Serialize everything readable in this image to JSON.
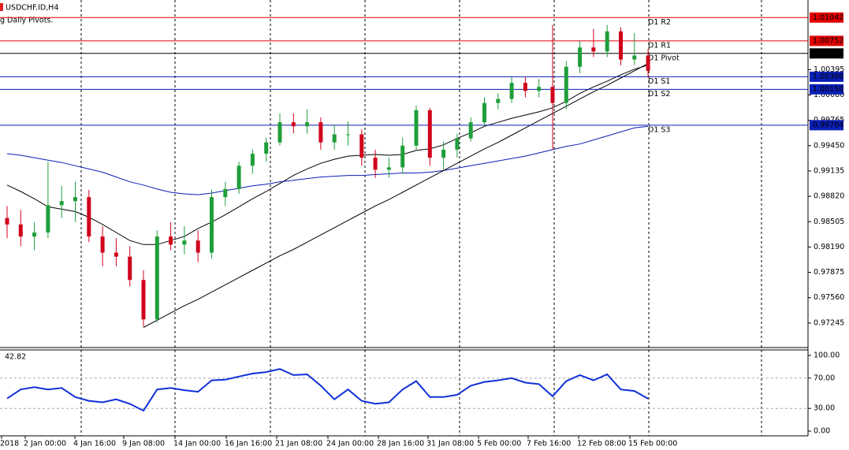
{
  "chart_data": [
    {
      "type": "candlestick",
      "title": "USDCHF.ID,H4",
      "subtitle": "g Daily Pivots.",
      "x_labels": [
        "2018",
        "2 Jan 00:00",
        "4 Jan 16:00",
        "9 Jan 08:00",
        "14 Jan 00:00",
        "16 Jan 16:00",
        "21 Jan 08:00",
        "24 Jan 00:00",
        "28 Jan 16:00",
        "31 Jan 08:00",
        "5 Feb 00:00",
        "7 Feb 16:00",
        "12 Feb 08:00",
        "15 Feb 00:00"
      ],
      "ylim": [
        0.9695,
        1.0126
      ],
      "yticks": [
        {
          "value": 1.00395,
          "label": "1.00395"
        },
        {
          "value": 1.0008,
          "label": "1.00080"
        },
        {
          "value": 0.99765,
          "label": "0.99765"
        },
        {
          "value": 0.9945,
          "label": "0.99450"
        },
        {
          "value": 0.99135,
          "label": "0.99135"
        },
        {
          "value": 0.9882,
          "label": "0.98820"
        },
        {
          "value": 0.98505,
          "label": "0.98505"
        },
        {
          "value": 0.9819,
          "label": "0.98190"
        },
        {
          "value": 0.97875,
          "label": "0.97875"
        },
        {
          "value": 0.9756,
          "label": "0.97560"
        },
        {
          "value": 0.97245,
          "label": "0.97245"
        }
      ],
      "up_color": "#1f9e3a",
      "down_color": "#d0021b",
      "candles": [
        [
          0.9855,
          0.987,
          0.983,
          0.9847
        ],
        [
          0.9847,
          0.9865,
          0.982,
          0.9832
        ],
        [
          0.9832,
          0.985,
          0.9815,
          0.9837
        ],
        [
          0.9837,
          0.9925,
          0.983,
          0.9871
        ],
        [
          0.9871,
          0.9895,
          0.9855,
          0.9876
        ],
        [
          0.9876,
          0.99,
          0.985,
          0.9881
        ],
        [
          0.9881,
          0.989,
          0.9825,
          0.9832
        ],
        [
          0.9832,
          0.9845,
          0.9795,
          0.9812
        ],
        [
          0.9812,
          0.983,
          0.9795,
          0.9807
        ],
        [
          0.9807,
          0.982,
          0.977,
          0.9778
        ],
        [
          0.9778,
          0.979,
          0.972,
          0.9729
        ],
        [
          0.9729,
          0.984,
          0.9725,
          0.9832
        ],
        [
          0.9832,
          0.985,
          0.9815,
          0.9822
        ],
        [
          0.9822,
          0.9845,
          0.981,
          0.9827
        ],
        [
          0.9827,
          0.984,
          0.98,
          0.9812
        ],
        [
          0.9812,
          0.989,
          0.9805,
          0.9881
        ],
        [
          0.9881,
          0.99,
          0.987,
          0.9891
        ],
        [
          0.9891,
          0.9925,
          0.9885,
          0.992
        ],
        [
          0.992,
          0.994,
          0.991,
          0.9935
        ],
        [
          0.9935,
          0.9955,
          0.9925,
          0.9949
        ],
        [
          0.9949,
          0.9985,
          0.9945,
          0.9974
        ],
        [
          0.9974,
          0.9985,
          0.996,
          0.9969
        ],
        [
          0.9969,
          0.999,
          0.996,
          0.9974
        ],
        [
          0.9974,
          0.998,
          0.994,
          0.9949
        ],
        [
          0.9949,
          0.997,
          0.994,
          0.9959
        ],
        [
          0.9959,
          0.9975,
          0.9945,
          0.9959
        ],
        [
          0.9959,
          0.9965,
          0.992,
          0.993
        ],
        [
          0.993,
          0.994,
          0.9905,
          0.9915
        ],
        [
          0.9915,
          0.993,
          0.9905,
          0.9918
        ],
        [
          0.9918,
          0.9955,
          0.991,
          0.9945
        ],
        [
          0.9945,
          0.9995,
          0.994,
          0.9989
        ],
        [
          0.9989,
          0.9992,
          0.992,
          0.993
        ],
        [
          0.993,
          0.995,
          0.9915,
          0.994
        ],
        [
          0.994,
          0.996,
          0.993,
          0.9954
        ],
        [
          0.9954,
          0.998,
          0.995,
          0.9974
        ],
        [
          0.9974,
          1.0005,
          0.997,
          0.9998
        ],
        [
          0.9998,
          1.001,
          0.999,
          1.0003
        ],
        [
          1.0003,
          1.003,
          0.9998,
          1.0023
        ],
        [
          1.0023,
          1.003,
          1.0005,
          1.0013
        ],
        [
          1.0013,
          1.0028,
          1.0005,
          1.0018
        ],
        [
          1.0018,
          1.0095,
          0.994,
          0.9998
        ],
        [
          0.9998,
          1.005,
          0.999,
          1.0043
        ],
        [
          1.0043,
          1.0075,
          1.0035,
          1.0067
        ],
        [
          1.0067,
          1.009,
          1.0055,
          1.0062
        ],
        [
          1.0062,
          1.0095,
          1.0055,
          1.0087
        ],
        [
          1.0087,
          1.0092,
          1.0045,
          1.0052
        ],
        [
          1.0052,
          1.0085,
          1.0045,
          1.0057
        ],
        [
          1.0057,
          1.0065,
          1.003,
          1.0038
        ]
      ],
      "series": [
        {
          "color": "#000000",
          "values": [
            0.9896,
            0.9888,
            0.9879,
            0.9869,
            0.9866,
            0.9863,
            0.9856,
            0.9847,
            0.9837,
            0.9827,
            0.9822,
            0.9822,
            0.9827,
            0.9832,
            0.9842,
            0.985,
            0.9859,
            0.9869,
            0.9879,
            0.9888,
            0.9898,
            0.9908,
            0.9916,
            0.9923,
            0.9928,
            0.9932,
            0.9933,
            0.9934,
            0.9933,
            0.9934,
            0.9939,
            0.9941,
            0.9946,
            0.9954,
            0.9961,
            0.9969,
            0.9974,
            0.9979,
            0.9983,
            0.9987,
            0.9992,
            1.0,
            1.001,
            1.0018,
            1.0025,
            1.0033,
            1.004,
            1.0045
          ]
        },
        {
          "color": "#0a1fb5",
          "values": [
            0.9935,
            0.9933,
            0.993,
            0.9927,
            0.9924,
            0.992,
            0.9916,
            0.9912,
            0.9906,
            0.99,
            0.9896,
            0.9891,
            0.9887,
            0.9885,
            0.9884,
            0.9886,
            0.9889,
            0.9892,
            0.9895,
            0.9897,
            0.99,
            0.9902,
            0.9904,
            0.9906,
            0.9907,
            0.9908,
            0.9908,
            0.9909,
            0.991,
            0.9911,
            0.9911,
            0.9912,
            0.9914,
            0.9917,
            0.992,
            0.9923,
            0.9926,
            0.9929,
            0.9932,
            0.9936,
            0.994,
            0.9944,
            0.9947,
            0.9952,
            0.9957,
            0.9962,
            0.9967,
            0.9969
          ]
        },
        {
          "color": "#000000",
          "values": [
            null,
            null,
            null,
            null,
            null,
            null,
            null,
            null,
            null,
            null,
            0.9719,
            0.9728,
            0.9737,
            0.9746,
            0.9754,
            0.9763,
            0.9772,
            0.9781,
            0.979,
            0.9799,
            0.9808,
            0.9816,
            0.9825,
            0.9834,
            0.9843,
            0.9852,
            0.9861,
            0.987,
            0.9878,
            0.9887,
            0.9896,
            0.9905,
            0.9914,
            0.9923,
            0.9932,
            0.9941,
            0.9949,
            0.9958,
            0.9967,
            0.9976,
            0.9985,
            0.9994,
            1.0003,
            1.0012,
            1.002,
            1.0029,
            1.0038,
            1.0047
          ]
        }
      ],
      "levels": [
        {
          "label": "D1 R2",
          "value": 1.01042,
          "value_label": "1.01042",
          "color": "#e00000"
        },
        {
          "label": "D1 R1",
          "value": 1.00752,
          "value_label": "1.00752",
          "color": "#e00000"
        },
        {
          "label": "D1 Pivot",
          "value": 1.00596,
          "value_label": "1.00596",
          "color": "#000000"
        },
        {
          "label": "D1 S1",
          "value": 1.00306,
          "value_label": "1.00306",
          "color": "#0a1fb5"
        },
        {
          "label": "D1 S2",
          "value": 1.0015,
          "value_label": "1.00150",
          "color": "#0a1fb5"
        },
        {
          "label": "D1 S3",
          "value": 0.99704,
          "value_label": "0.99704",
          "color": "#0a1fb5"
        }
      ]
    },
    {
      "type": "line",
      "last_label": "42.82",
      "color": "#1030d8",
      "ylim": [
        -6.2,
        107.2
      ],
      "yticks": [
        {
          "value": 100,
          "label": "100.00"
        },
        {
          "value": 70,
          "label": "70.00"
        },
        {
          "value": 30,
          "label": "30.00"
        },
        {
          "value": 0,
          "label": "0.00"
        }
      ],
      "values": [
        43,
        55,
        58,
        55,
        57,
        45,
        40,
        38,
        42,
        36,
        27,
        55,
        57,
        54,
        52,
        67,
        68,
        72,
        76,
        78,
        82,
        74,
        75,
        60,
        42,
        55,
        40,
        36,
        38,
        55,
        66,
        45,
        45,
        48,
        60,
        65,
        67,
        70,
        64,
        62,
        46,
        66,
        74,
        67,
        75,
        55,
        53,
        42.82
      ]
    }
  ]
}
